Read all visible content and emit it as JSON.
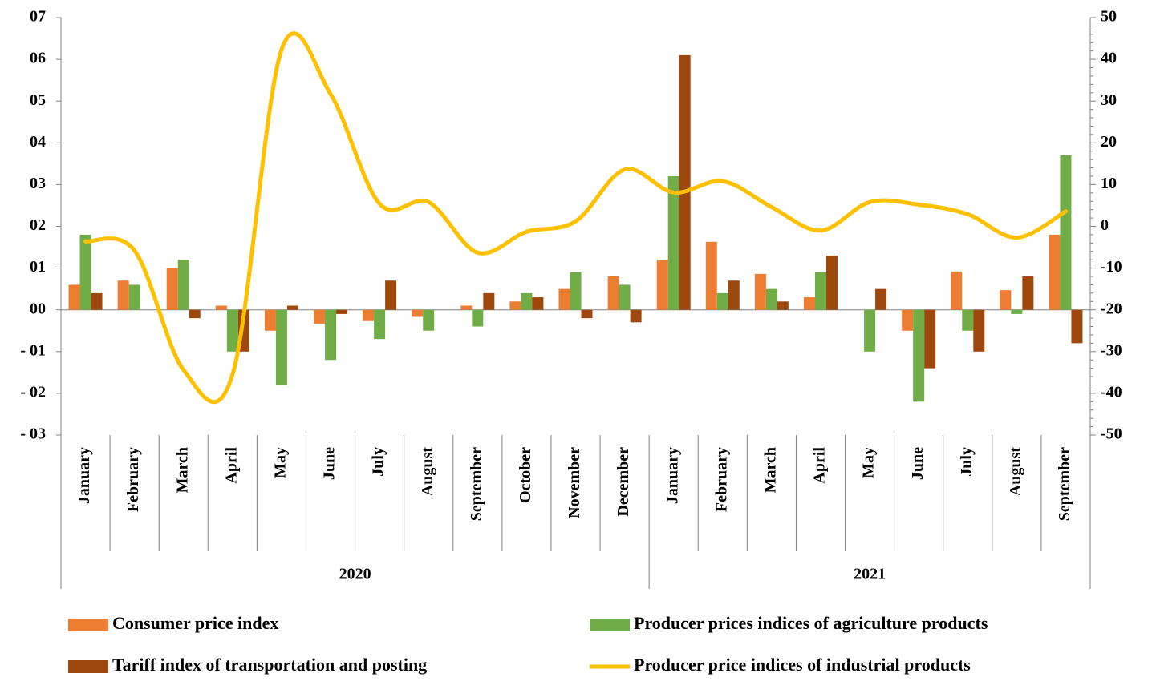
{
  "chart_data": {
    "type": "bar",
    "groups": [
      {
        "label": "2020",
        "categories": [
          "January",
          "February",
          "March",
          "April",
          "May",
          "June",
          "July",
          "August",
          "September",
          "October",
          "November",
          "December"
        ]
      },
      {
        "label": "2021",
        "categories": [
          "January",
          "February",
          "March",
          "April",
          "May",
          "June",
          "July",
          "August",
          "September"
        ]
      }
    ],
    "series": [
      {
        "name": "Consumer price index",
        "type": "bar",
        "color": "#ed7d31",
        "values": [
          0.6,
          0.7,
          1.0,
          0.1,
          -0.5,
          -0.33,
          -0.27,
          -0.17,
          0.1,
          0.2,
          0.5,
          0.8,
          1.2,
          1.63,
          0.86,
          0.3,
          0,
          -0.5,
          0.92,
          0.47,
          1.8
        ]
      },
      {
        "name": "Producer prices indices of agriculture products",
        "type": "bar",
        "color": "#70ad47",
        "values": [
          1.8,
          0.6,
          1.2,
          -1.0,
          -1.8,
          -1.2,
          -0.7,
          -0.5,
          -0.4,
          0.4,
          0.9,
          0.6,
          3.2,
          0.4,
          0.5,
          0.9,
          -1.0,
          -2.2,
          -0.5,
          -0.1,
          3.7
        ]
      },
      {
        "name": "Tariff index of transportation and posting",
        "type": "bar",
        "color": "#9e480e",
        "values": [
          0.4,
          0,
          -0.2,
          -1.0,
          0.1,
          -0.1,
          0.7,
          0,
          0.4,
          0.3,
          -0.2,
          -0.3,
          6.1,
          0.7,
          0.2,
          1.3,
          0.5,
          -1.4,
          -1.0,
          0.8,
          -0.8
        ]
      },
      {
        "name": "Producer price indices of industrial products",
        "type": "line",
        "axis": "y2",
        "color": "#ffc000",
        "values": [
          -3.6,
          -5.8,
          -34.4,
          -35.5,
          42.3,
          31.7,
          5.4,
          5.8,
          -6.3,
          -1.3,
          1.2,
          13.6,
          8.1,
          10.8,
          4.6,
          -1.0,
          5.8,
          5.2,
          2.9,
          -2.7,
          3.6
        ]
      }
    ],
    "ylim": [
      -3,
      7
    ],
    "yticks": [
      {
        "value": 7,
        "label": "07"
      },
      {
        "value": 6,
        "label": "06"
      },
      {
        "value": 5,
        "label": "05"
      },
      {
        "value": 4,
        "label": "04"
      },
      {
        "value": 3,
        "label": "03"
      },
      {
        "value": 2,
        "label": "02"
      },
      {
        "value": 1,
        "label": "01"
      },
      {
        "value": 0,
        "label": "00"
      },
      {
        "value": -1,
        "label": "- 01"
      },
      {
        "value": -2,
        "label": "- 02"
      },
      {
        "value": -3,
        "label": "- 03"
      }
    ],
    "y2lim": [
      -50,
      50
    ],
    "y2ticks": [
      50,
      40,
      30,
      20,
      10,
      0,
      -10,
      -20,
      -30,
      -40,
      -50
    ],
    "legend": "bottom"
  }
}
